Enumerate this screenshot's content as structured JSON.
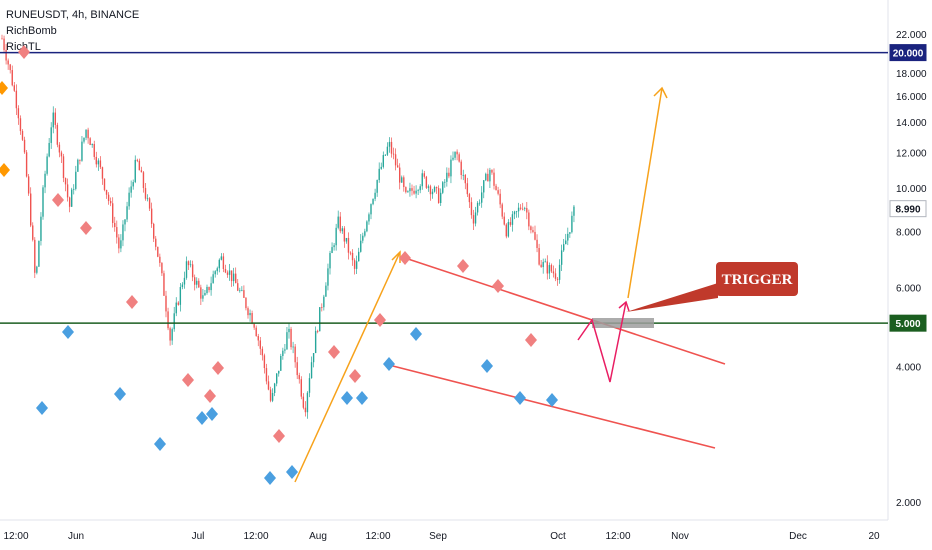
{
  "legend": {
    "symbol": "RUNEUSDT, 4h, BINANCE",
    "indicator_1": "RichBomb",
    "indicator_2": "RichTL"
  },
  "annotation": {
    "trigger_label": "TRIGGER"
  },
  "colors": {
    "up_candle": "#26a69a",
    "down_candle": "#ef5350",
    "resistance_line": "#1a237e",
    "support_line": "#1b5e20",
    "channel_lines": "#ef5350",
    "orange_arrow": "#f7a21b",
    "magenta_path": "#e91e63",
    "trigger_box": "#c0392b",
    "zone": "#9e9e9e",
    "diamond_red": "#f08080",
    "diamond_blue": "#4a9fe0",
    "diamond_orange": "#ff9800",
    "current_price_tag": "#ffffff"
  },
  "chart_data": {
    "type": "candlestick",
    "y_axis": {
      "scale": "log",
      "ticks": [
        "2.000",
        "4.000",
        "6.000",
        "8.000",
        "10.000",
        "12.000",
        "14.000",
        "16.000",
        "18.000",
        "20.000",
        "22.000"
      ]
    },
    "x_axis": {
      "ticks": [
        "12:00",
        "Jun",
        "Jul",
        "12:00",
        "Aug",
        "12:00",
        "Sep",
        "Oct",
        "12:00",
        "Nov",
        "Dec",
        "20"
      ]
    },
    "horizontal_levels": [
      {
        "label": "20.000",
        "value": 20,
        "color": "#1a237e"
      },
      {
        "label": "5.000",
        "value": 5,
        "color": "#1b5e20"
      }
    ],
    "current_price": {
      "label": "8.990",
      "value": 8.99
    },
    "price_path": [
      21.5,
      14.5,
      6.0,
      14.5,
      9.0,
      13.5,
      10.5,
      7.2,
      11.5,
      8.0,
      4.6,
      6.8,
      5.6,
      7.0,
      6.0,
      5.0,
      3.3,
      4.8,
      3.2,
      5.5,
      8.4,
      6.5,
      9.5,
      12.5,
      9.5,
      10.5,
      9.5,
      12.0,
      8.5,
      11.0,
      8.0,
      9.3,
      6.8,
      6.4,
      8.8
    ]
  }
}
